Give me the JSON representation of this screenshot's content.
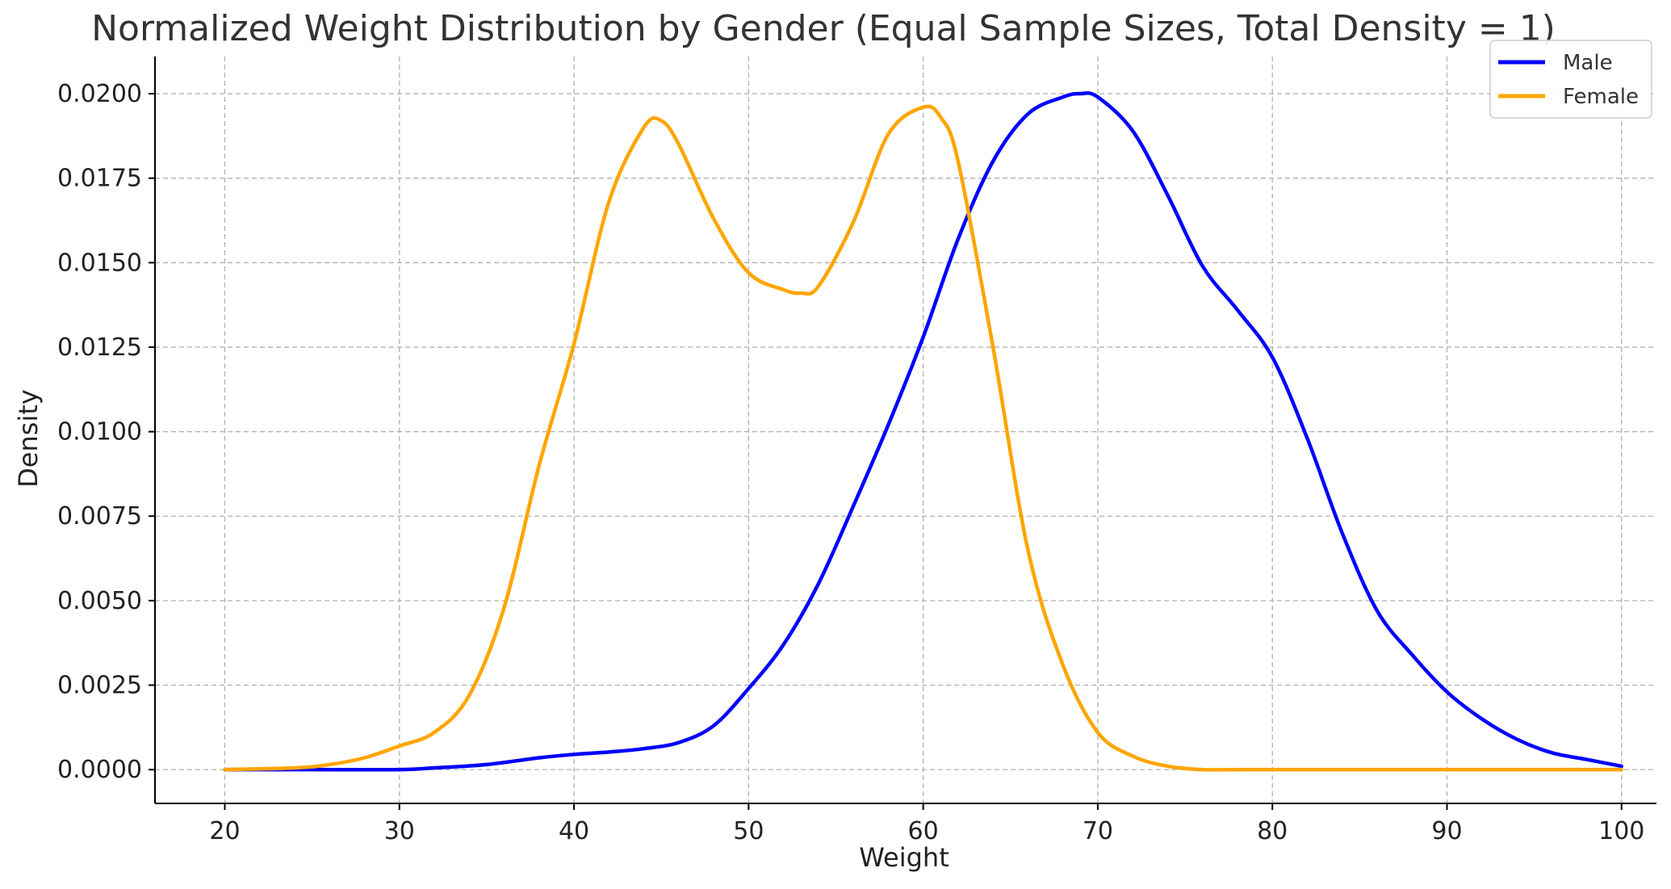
{
  "chart_data": {
    "type": "line",
    "title": "Normalized Weight Distribution by Gender (Equal Sample Sizes, Total Density = 1)",
    "xlabel": "Weight",
    "ylabel": "Density",
    "xlim": [
      16,
      102
    ],
    "ylim": [
      -0.001,
      0.0211
    ],
    "xticks": [
      20,
      30,
      40,
      50,
      60,
      70,
      80,
      90,
      100
    ],
    "xtick_labels": [
      "20",
      "30",
      "40",
      "50",
      "60",
      "70",
      "80",
      "90",
      "100"
    ],
    "yticks": [
      0.0,
      0.0025,
      0.005,
      0.0075,
      0.01,
      0.0125,
      0.015,
      0.0175,
      0.02
    ],
    "ytick_labels": [
      "0.0000",
      "0.0025",
      "0.0050",
      "0.0075",
      "0.0100",
      "0.0125",
      "0.0150",
      "0.0175",
      "0.0200"
    ],
    "grid": true,
    "legend_position": "top-right",
    "series": [
      {
        "name": "Male",
        "color": "#0000ff",
        "x": [
          20,
          25,
          30,
          32,
          35,
          38,
          40,
          42,
          44,
          46,
          48,
          50,
          52,
          54,
          56,
          58,
          60,
          62,
          64,
          66,
          68,
          69,
          70,
          72,
          74,
          76,
          78,
          80,
          82,
          84,
          86,
          88,
          90,
          92,
          94,
          96,
          98,
          100
        ],
        "y": [
          0.0,
          0.0,
          0.0,
          5e-05,
          0.00015,
          0.00035,
          0.00045,
          0.00052,
          0.00062,
          0.0008,
          0.0013,
          0.0024,
          0.0037,
          0.0055,
          0.0078,
          0.0102,
          0.0128,
          0.0157,
          0.018,
          0.0194,
          0.0199,
          0.02,
          0.0199,
          0.0189,
          0.017,
          0.0149,
          0.0136,
          0.0122,
          0.0098,
          0.007,
          0.0047,
          0.0034,
          0.0023,
          0.0015,
          0.0009,
          0.0005,
          0.0003,
          0.0001
        ]
      },
      {
        "name": "Female",
        "color": "#ffa500",
        "x": [
          20,
          24,
          26,
          28,
          30,
          32,
          34,
          36,
          38,
          40,
          42,
          44,
          45,
          46,
          48,
          50,
          52,
          53,
          54,
          56,
          58,
          60,
          61,
          62,
          64,
          66,
          68,
          70,
          72,
          74,
          76,
          78,
          80,
          90,
          100
        ],
        "y": [
          0.0,
          5e-05,
          0.00015,
          0.00035,
          0.0007,
          0.0011,
          0.0022,
          0.0048,
          0.009,
          0.0126,
          0.0168,
          0.019,
          0.0192,
          0.0185,
          0.0163,
          0.0147,
          0.0142,
          0.0141,
          0.0143,
          0.0162,
          0.0188,
          0.0196,
          0.0193,
          0.018,
          0.0125,
          0.0065,
          0.0031,
          0.0011,
          0.0004,
          0.0001,
          0.0,
          0.0,
          0.0,
          0.0,
          0.0
        ]
      }
    ]
  }
}
